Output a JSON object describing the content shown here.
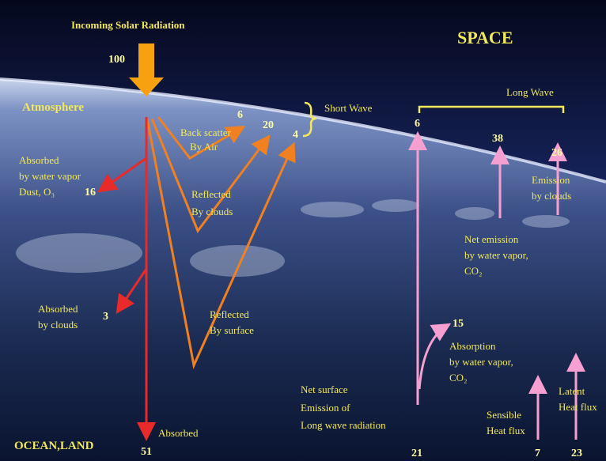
{
  "incoming": {
    "label": "Incoming Solar Radiation",
    "value": 100
  },
  "regions": {
    "space": "SPACE",
    "atmosphere": "Atmosphere",
    "surface": "OCEAN,LAND"
  },
  "short_wave": {
    "label": "Short Wave",
    "flows": [
      {
        "value": 6,
        "label": [
          "Back scatter",
          "By Air"
        ]
      },
      {
        "value": 20,
        "label": [
          "Reflected",
          "By clouds"
        ]
      },
      {
        "value": 4,
        "label": [
          "Reflected",
          "By surface"
        ]
      }
    ]
  },
  "absorbed": [
    {
      "value": 16,
      "label": [
        "Absorbed",
        "by water vapor",
        "Dust, O₃"
      ]
    },
    {
      "value": 3,
      "label": [
        "Absorbed",
        "by clouds"
      ]
    },
    {
      "value": 51,
      "label": [
        "Absorbed"
      ]
    }
  ],
  "long_wave": {
    "label": "Long Wave",
    "flows": [
      {
        "value": 6
      },
      {
        "value": 38,
        "label": [
          "Net emission",
          "by water vapor,",
          "CO₂"
        ]
      },
      {
        "value": 26,
        "label": [
          "Emission",
          "by clouds"
        ]
      },
      {
        "value": 15,
        "label": [
          "Absorption",
          "by water vapor,",
          "CO₂"
        ]
      },
      {
        "value": 21,
        "label": [
          "Net surface",
          "Emission of",
          "Long wave radiation"
        ]
      },
      {
        "value": 7,
        "label": [
          "Sensible",
          "Heat flux"
        ]
      },
      {
        "value": 23,
        "label": [
          "Latent",
          "Heat flux"
        ]
      }
    ]
  }
}
